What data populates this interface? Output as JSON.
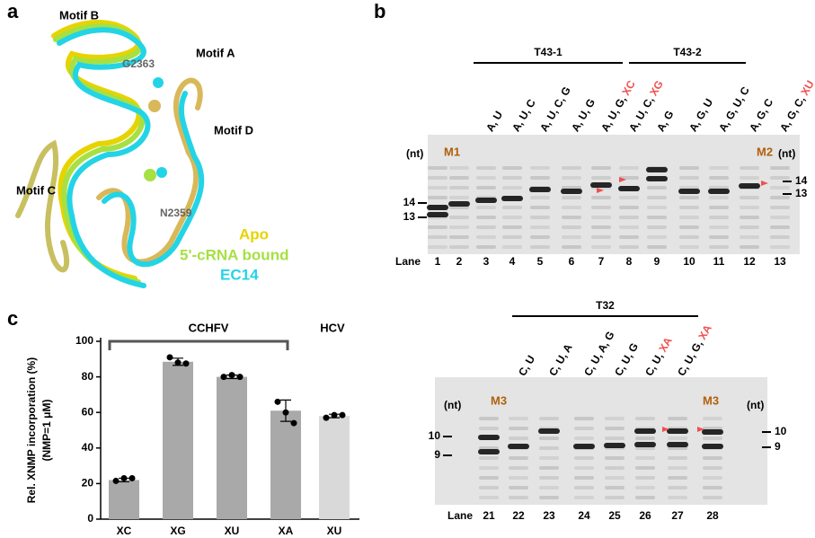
{
  "panel_labels": [
    "a",
    "b",
    "c"
  ],
  "panel_a": {
    "motifs": [
      "Motif B",
      "Motif A",
      "Motif D",
      "Motif C"
    ],
    "residues": [
      "G2363",
      "N2359"
    ],
    "legend": [
      {
        "name": "Apo",
        "color": "#e6d400"
      },
      {
        "name": "5'-cRNA bound",
        "color": "#a6e044"
      },
      {
        "name": "EC14",
        "color": "#22d4e6"
      }
    ]
  },
  "panel_b": {
    "top_gel": {
      "groups": [
        "T43-1",
        "T43-2"
      ],
      "nt": "(nt)",
      "markers": [
        "M1",
        "M2"
      ],
      "lane_header": "Lane",
      "lanes": [
        1,
        2,
        3,
        4,
        5,
        6,
        7,
        8,
        9,
        10,
        11,
        12,
        13
      ],
      "conditions": [
        {
          "nts": "A, U"
        },
        {
          "nts": "A, U, C"
        },
        {
          "nts": "A, U, C, G"
        },
        {
          "nts": "A, U, G"
        },
        {
          "nts": "A, U, G, ",
          "analog": "XC"
        },
        {
          "nts": "A, U, C, ",
          "analog": "XG"
        },
        {
          "nts": "A, G"
        },
        {
          "nts": "A, G, U"
        },
        {
          "nts": "A, G, U, C"
        },
        {
          "nts": "A, G, C"
        },
        {
          "nts": "A, G, C, ",
          "analog": "XU"
        }
      ],
      "left_sizes": [
        "14",
        "13"
      ],
      "right_sizes": [
        "14",
        "13"
      ]
    },
    "bottom_gel": {
      "groups": [
        "T32"
      ],
      "nt": "(nt)",
      "markers": [
        "M3",
        "M3"
      ],
      "lane_header": "Lane",
      "lanes": [
        21,
        22,
        23,
        24,
        25,
        26,
        27,
        28
      ],
      "conditions": [
        {
          "nts": "C, U"
        },
        {
          "nts": "C, U, A"
        },
        {
          "nts": "C, U, A, G"
        },
        {
          "nts": "C, U, G"
        },
        {
          "nts": "C, U, ",
          "analog": "XA"
        },
        {
          "nts": "C, U, G, ",
          "analog": "XA"
        }
      ],
      "left_sizes": [
        "10",
        "9"
      ],
      "right_sizes": [
        "10",
        "9"
      ]
    }
  },
  "chart_data": {
    "type": "bar",
    "ylabel": [
      "Rel. XNMP incorporation (%)",
      "(NMP=1 μM)"
    ],
    "groups": [
      "CCHFV",
      "HCV"
    ],
    "categories": [
      "XC",
      "XG",
      "XU",
      "XA",
      "XU"
    ],
    "values": [
      22,
      88.5,
      80,
      61,
      58
    ],
    "errors": [
      1,
      2,
      1,
      6,
      1
    ],
    "replicates": [
      [
        21.5,
        23,
        23
      ],
      [
        91,
        88,
        87.5
      ],
      [
        80,
        81,
        80
      ],
      [
        66,
        60,
        54
      ],
      [
        57,
        58.5,
        58.5
      ]
    ],
    "colors": [
      "#a9a9a9",
      "#a9a9a9",
      "#a9a9a9",
      "#a9a9a9",
      "#d9d9d9"
    ],
    "ylim": [
      0,
      100
    ],
    "yticks": [
      0,
      20,
      40,
      60,
      80,
      100
    ]
  }
}
